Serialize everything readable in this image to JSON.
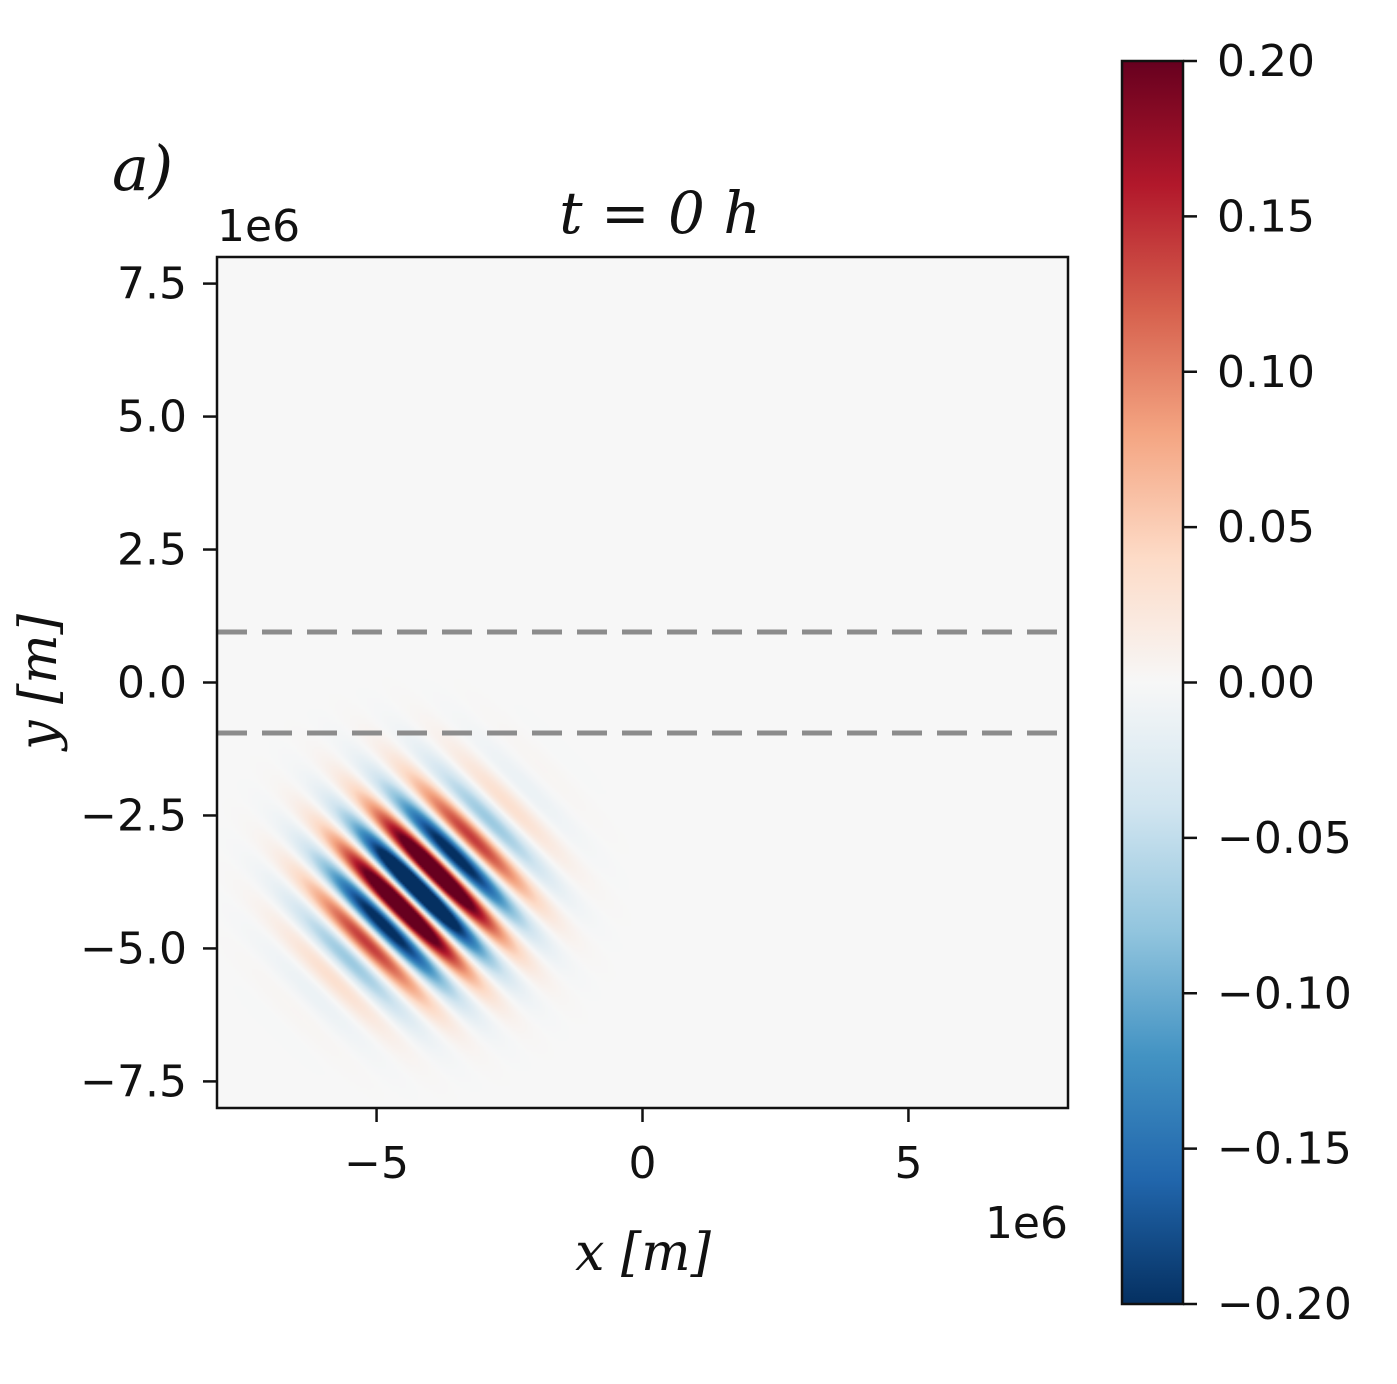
{
  "panel_label": "a)",
  "chart_data": {
    "type": "heatmap",
    "title": "t = 0 h",
    "xlabel": "x [m]",
    "ylabel": "y [m]",
    "x_multiplier": "1e6",
    "y_multiplier": "1e6",
    "xlim": [
      -8,
      8
    ],
    "ylim": [
      -8,
      8
    ],
    "x_ticks": [
      -5,
      0,
      5
    ],
    "x_tick_labels": [
      "−5",
      "0",
      "5"
    ],
    "y_ticks": [
      7.5,
      5.0,
      2.5,
      0.0,
      -2.5,
      -5.0,
      -7.5
    ],
    "y_tick_labels": [
      "7.5",
      "5.0",
      "2.5",
      "0.0",
      "−2.5",
      "−5.0",
      "−7.5"
    ],
    "grid": false,
    "colorbar": {
      "range": [
        -0.2,
        0.2
      ],
      "ticks": [
        0.2,
        0.15,
        0.1,
        0.05,
        0.0,
        -0.05,
        -0.1,
        -0.15,
        -0.2
      ],
      "tick_labels": [
        "0.20",
        "0.15",
        "0.10",
        "0.05",
        "0.00",
        "−0.05",
        "−0.10",
        "−0.15",
        "−0.20"
      ],
      "colormap": "RdBu_r"
    },
    "reference_lines": [
      {
        "y": 0.95,
        "style": "dashed",
        "color": "#8c8c8c"
      },
      {
        "y": -0.95,
        "style": "dashed",
        "color": "#8c8c8c"
      }
    ],
    "wave_packet": {
      "center": [
        -4.2,
        -3.9
      ],
      "amplitude": 0.2,
      "wavelength": 0.95,
      "orientation_deg": 45,
      "envelope_width": 1.1
    },
    "colors": {
      "background_field": "#f7f7f7",
      "positive": "#67001f",
      "negative": "#053061"
    }
  }
}
